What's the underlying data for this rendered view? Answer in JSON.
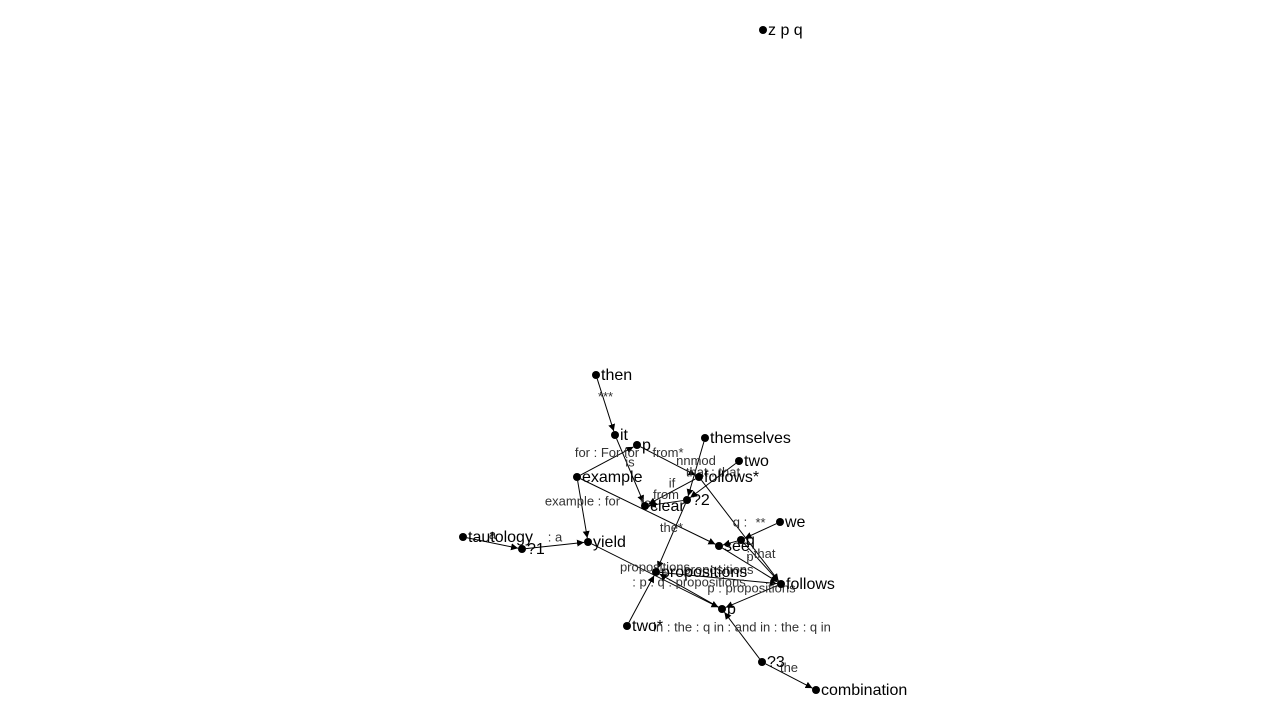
{
  "graph": {
    "nodes": [
      {
        "id": "zpq",
        "label": "z p q"
      },
      {
        "id": "then",
        "label": "then"
      },
      {
        "id": "it",
        "label": "it"
      },
      {
        "id": "p_top",
        "label": "p"
      },
      {
        "id": "themselves",
        "label": "themselves"
      },
      {
        "id": "two_top",
        "label": "two"
      },
      {
        "id": "example",
        "label": "example"
      },
      {
        "id": "follows_star",
        "label": "follows*"
      },
      {
        "id": "clear",
        "label": "clear"
      },
      {
        "id": "q2",
        "label": "?2"
      },
      {
        "id": "we",
        "label": "we"
      },
      {
        "id": "tautology",
        "label": "tautology"
      },
      {
        "id": "q1",
        "label": "?1"
      },
      {
        "id": "yield",
        "label": "yield"
      },
      {
        "id": "see",
        "label": "see"
      },
      {
        "id": "q_node",
        "label": "q"
      },
      {
        "id": "propositions",
        "label": "propositions"
      },
      {
        "id": "follows",
        "label": "follows"
      },
      {
        "id": "p_bottom",
        "label": "p"
      },
      {
        "id": "two_star",
        "label": "two*"
      },
      {
        "id": "q3",
        "label": "?3"
      },
      {
        "id": "combination",
        "label": "combination"
      }
    ],
    "edges": [
      {
        "from": "then",
        "to": "it",
        "label": "***"
      },
      {
        "from": "it",
        "to": "clear",
        "label": "is"
      },
      {
        "from": "example",
        "to": "p_top",
        "label": "for : For for"
      },
      {
        "from": "p_top",
        "to": "follows_star",
        "label": "from*"
      },
      {
        "from": "example",
        "to": "yield",
        "label": "example : for"
      },
      {
        "from": "example",
        "to": "see",
        "label": "for"
      },
      {
        "from": "themselves",
        "to": "q2",
        "label": "nnmod"
      },
      {
        "from": "two_top",
        "to": "q2",
        "label": "that : that"
      },
      {
        "from": "follows_star",
        "to": "clear",
        "label": "if"
      },
      {
        "from": "follows_star",
        "to": "follows",
        "label": "q :"
      },
      {
        "from": "q2",
        "to": "clear",
        "label": "from"
      },
      {
        "from": "q2",
        "to": "propositions",
        "label": "the*"
      },
      {
        "from": "we",
        "to": "q_node",
        "label": "**"
      },
      {
        "from": "q_node",
        "to": "see",
        "label": ""
      },
      {
        "from": "q_node",
        "to": "follows",
        "label": ": that"
      },
      {
        "from": "see",
        "to": "follows",
        "label": "p"
      },
      {
        "from": "tautology",
        "to": "q1",
        "label": "a"
      },
      {
        "from": "q1",
        "to": "yield",
        "label": ": a"
      },
      {
        "from": "yield",
        "to": "p_bottom",
        "label": "propositions"
      },
      {
        "from": "propositions",
        "to": "follows",
        "label": "propositions"
      },
      {
        "from": "p_bottom",
        "to": "propositions",
        "label": ": p : q : propositions"
      },
      {
        "from": "follows",
        "to": "p_bottom",
        "label": "p : propositions"
      },
      {
        "from": "two_star",
        "to": "propositions",
        "label": ""
      },
      {
        "from": "q3",
        "to": "p_bottom",
        "label": "in : the : q in : and in : the : q in"
      },
      {
        "from": "q3",
        "to": "combination",
        "label": "the"
      }
    ]
  }
}
